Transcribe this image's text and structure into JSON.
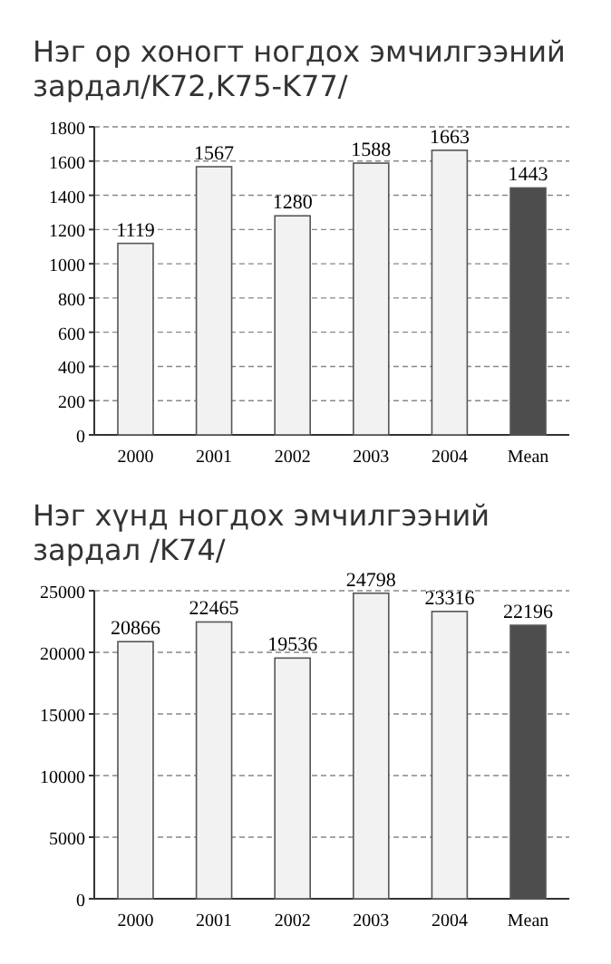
{
  "chart_data": [
    {
      "type": "bar",
      "title": "Нэг ор хоногт ногдох эмчилгээний зардал/K72,K75-K77/",
      "categories": [
        "2000",
        "2001",
        "2002",
        "2003",
        "2004",
        "Mean"
      ],
      "values": [
        1119,
        1567,
        1280,
        1588,
        1663,
        1443
      ],
      "colors": [
        "#f2f2f2",
        "#f2f2f2",
        "#f2f2f2",
        "#f2f2f2",
        "#f2f2f2",
        "#4d4d4d"
      ],
      "ylim": [
        0,
        1800
      ],
      "yticks": [
        0,
        200,
        400,
        600,
        800,
        1000,
        1200,
        1400,
        1600,
        1800
      ],
      "grid": "y",
      "data_labels": true
    },
    {
      "type": "bar",
      "title": "Нэг хүнд ногдох эмчилгээний зардал /K74/",
      "categories": [
        "2000",
        "2001",
        "2002",
        "2003",
        "2004",
        "Mean"
      ],
      "values": [
        20866,
        22465,
        19536,
        24798,
        23316,
        22196
      ],
      "colors": [
        "#f2f2f2",
        "#f2f2f2",
        "#f2f2f2",
        "#f2f2f2",
        "#f2f2f2",
        "#4d4d4d"
      ],
      "ylim": [
        0,
        25000
      ],
      "yticks": [
        0,
        5000,
        10000,
        15000,
        20000,
        25000
      ],
      "grid": "y",
      "data_labels": true
    }
  ]
}
